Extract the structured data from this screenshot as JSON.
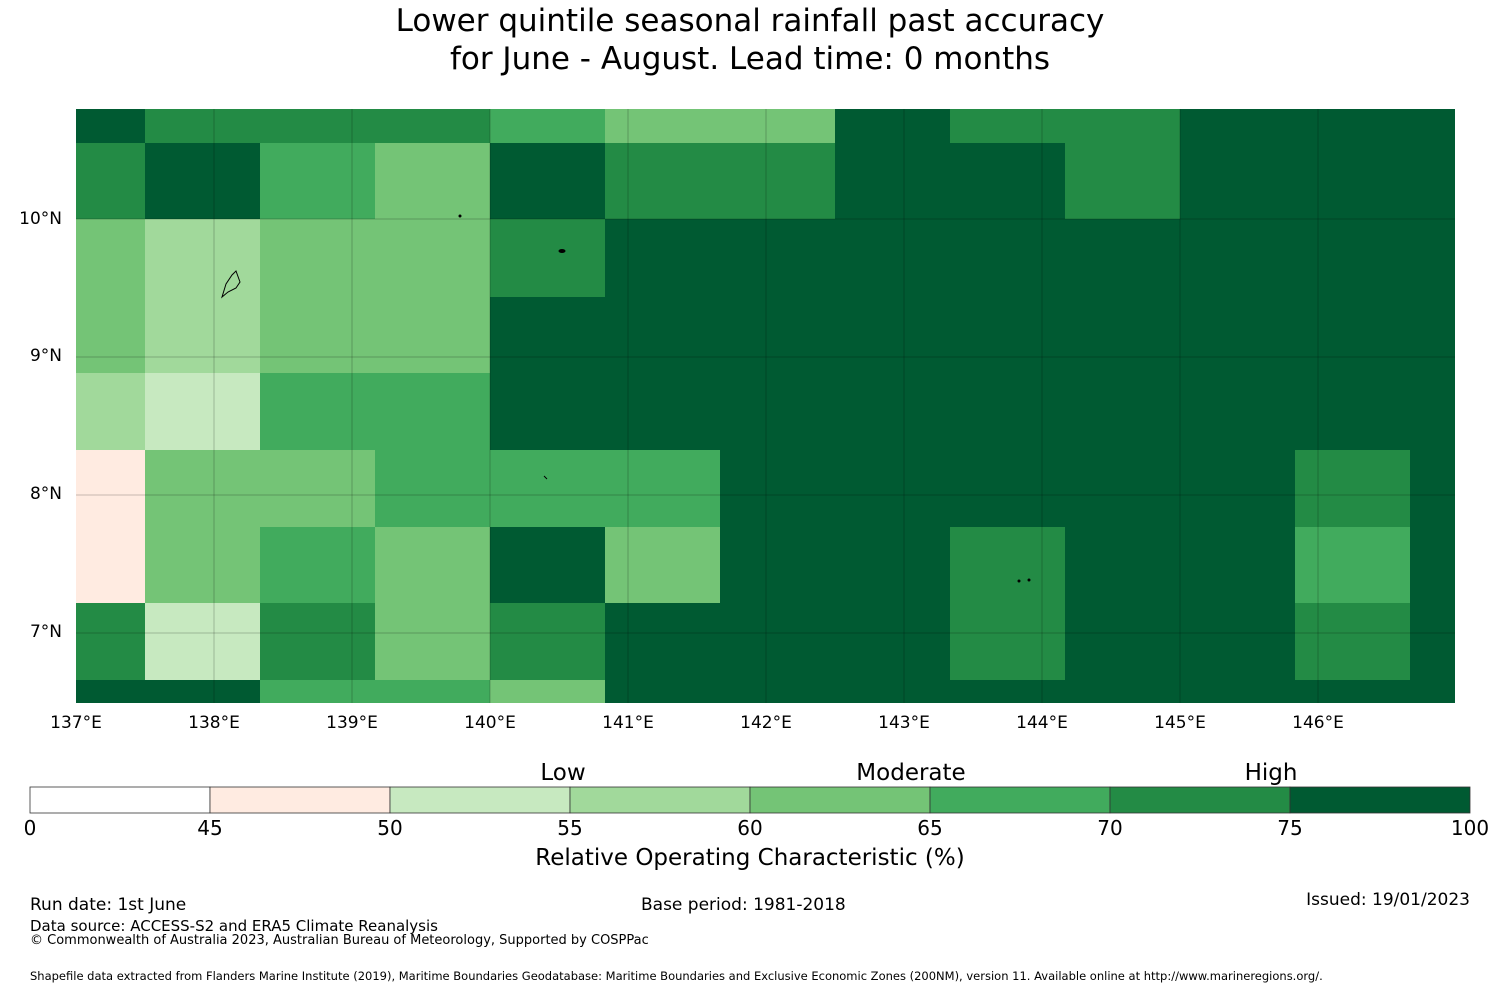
{
  "title": {
    "line1": "Lower quintile seasonal rainfall past accuracy",
    "line2": "for June - August. Lead time: 0 months"
  },
  "map": {
    "x_ticks": [
      "137°E",
      "138°E",
      "139°E",
      "140°E",
      "141°E",
      "142°E",
      "143°E",
      "144°E",
      "145°E",
      "146°E"
    ],
    "y_ticks": [
      "10°N",
      "9°N",
      "8°N",
      "7°N"
    ],
    "lon_range": [
      137,
      147
    ],
    "lat_range": [
      6.5,
      10.8
    ],
    "cell_value_note_levels": [
      45,
      50,
      55,
      60,
      65,
      70,
      75,
      100
    ],
    "grid_rows_top_to_bottom": [
      [
        100,
        75,
        75,
        75,
        70,
        65,
        65,
        100,
        75,
        75,
        100,
        100,
        100
      ],
      [
        75,
        100,
        70,
        65,
        100,
        75,
        75,
        100,
        100,
        75,
        100,
        100,
        100
      ],
      [
        65,
        60,
        65,
        65,
        75,
        100,
        100,
        100,
        100,
        100,
        100,
        100,
        100
      ],
      [
        65,
        60,
        65,
        65,
        100,
        100,
        100,
        100,
        100,
        100,
        100,
        100,
        100
      ],
      [
        60,
        55,
        70,
        70,
        100,
        100,
        100,
        100,
        100,
        100,
        100,
        100,
        100
      ],
      [
        50,
        65,
        65,
        70,
        70,
        70,
        100,
        100,
        100,
        100,
        100,
        75,
        100
      ],
      [
        50,
        65,
        70,
        65,
        100,
        65,
        100,
        100,
        75,
        100,
        100,
        70,
        100
      ],
      [
        75,
        55,
        75,
        65,
        75,
        100,
        100,
        100,
        75,
        100,
        100,
        75,
        100
      ],
      [
        100,
        100,
        70,
        70,
        65,
        100,
        100,
        100,
        100,
        100,
        100,
        100,
        100
      ]
    ]
  },
  "colorbar": {
    "bands": [
      "Low",
      "Moderate",
      "High"
    ],
    "ticks": [
      "0",
      "45",
      "50",
      "55",
      "60",
      "65",
      "70",
      "75",
      "100"
    ],
    "colors": [
      "#ffffff",
      "#ffebe1",
      "#c7e9c0",
      "#a1d99b",
      "#74c476",
      "#41ab5d",
      "#238b45",
      "#005a32"
    ],
    "label": "Relative Operating Characteristic (%)"
  },
  "footer": {
    "run_date": "Run date: 1st June",
    "base_period": "Base period: 1981-2018",
    "issued": "Issued: 19/01/2023",
    "data_source": "Data source: ACCESS-S2 and ERA5 Climate Reanalysis",
    "copyright": "© Commonwealth of Australia 2023, Australian Bureau of Meteorology, Supported by COSPPac",
    "shapefile": "Shapefile data extracted from Flanders Marine Institute (2019), Maritime Boundaries Geodatabase: Maritime Boundaries and Exclusive Economic Zones (200NM), version 11. Available online at http://www.marineregions.org/."
  }
}
